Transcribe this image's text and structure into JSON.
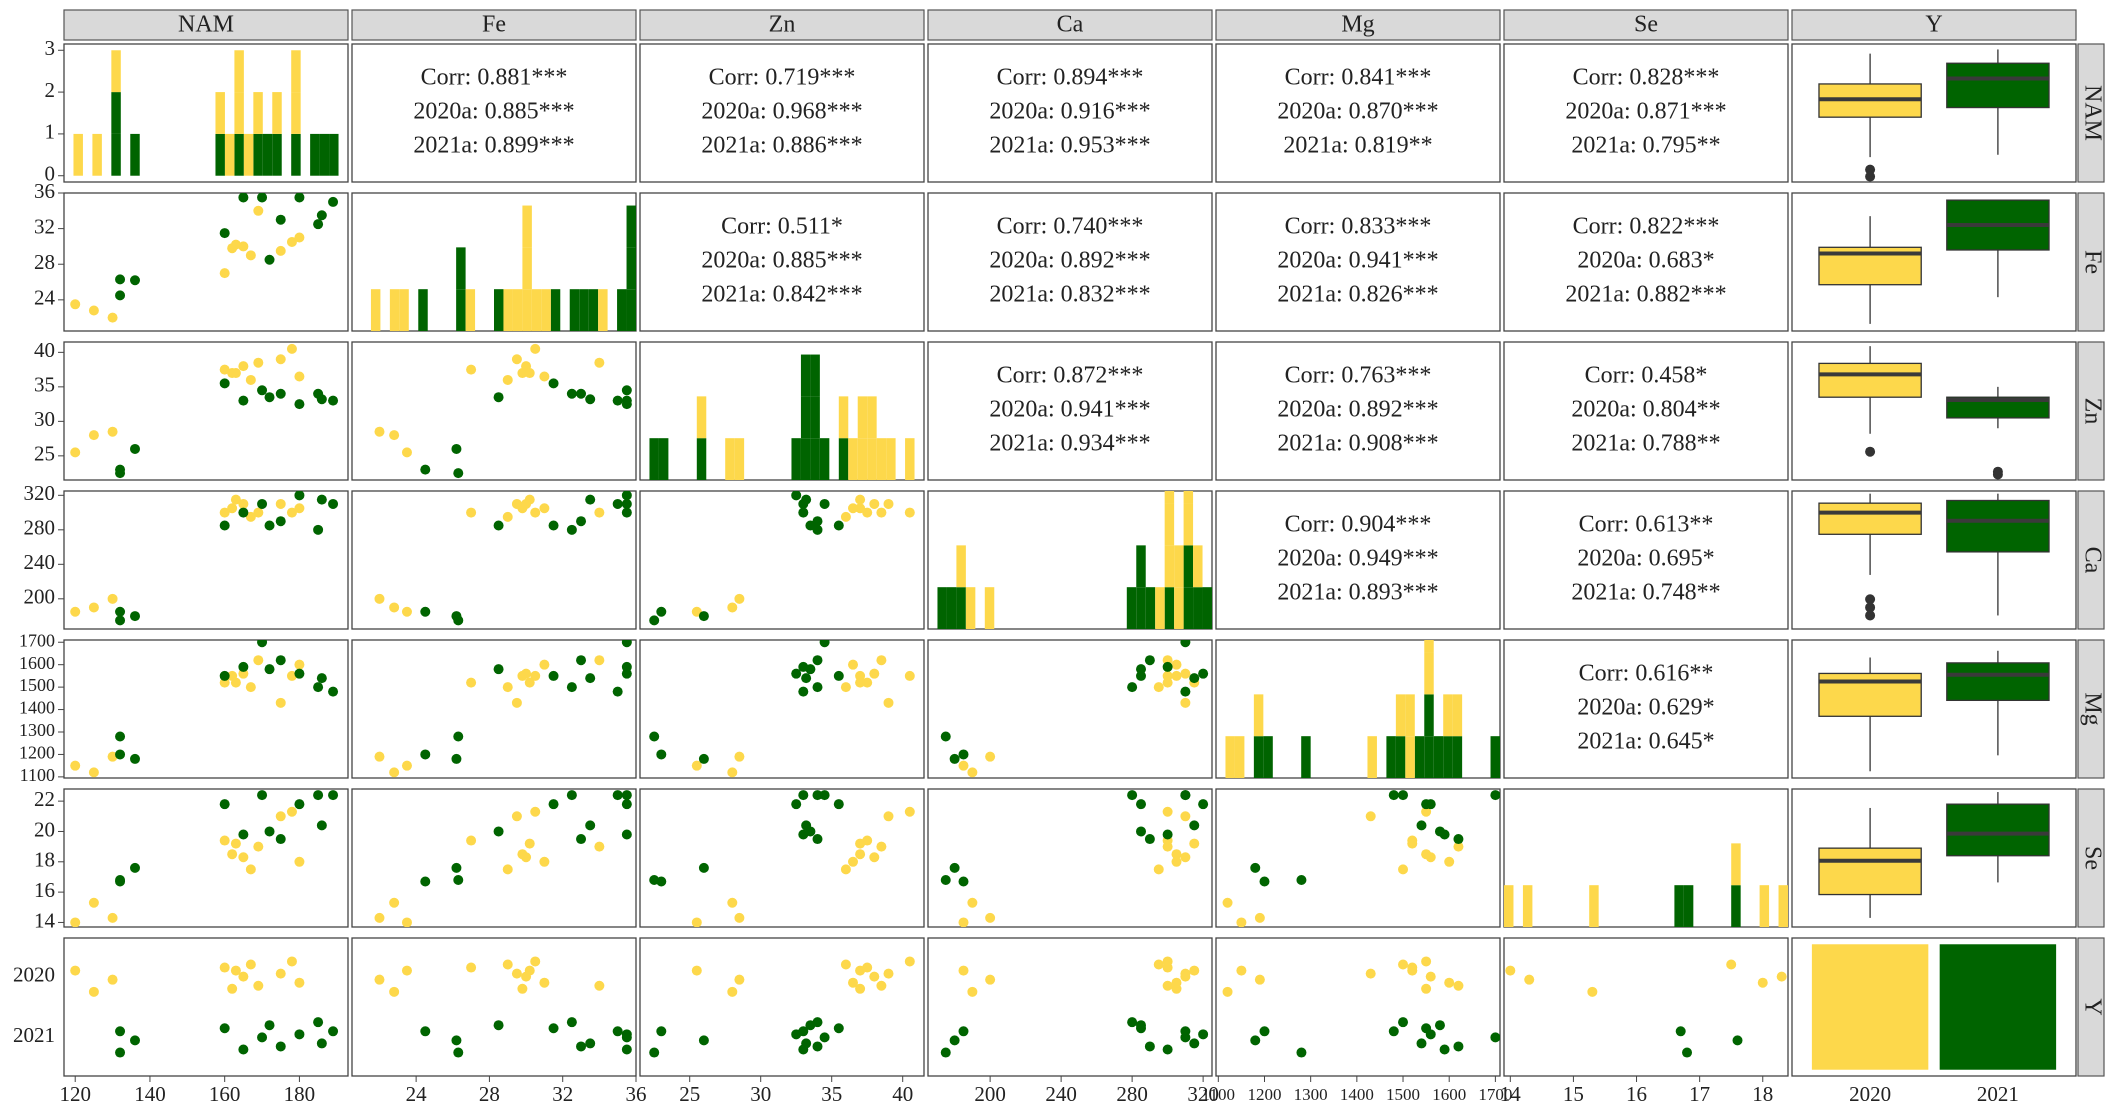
{
  "chart_data": {
    "type": "pairs",
    "variables": [
      {
        "name": "NAM",
        "xlim": [
          117,
          193
        ],
        "xticks": [
          120,
          140,
          160,
          180
        ],
        "ylim": [
          117,
          193
        ],
        "count_lim": [
          -0.15,
          3.15
        ],
        "count_ticks": [
          0,
          1,
          2,
          3
        ]
      },
      {
        "name": "Fe",
        "xlim": [
          20.5,
          36
        ],
        "xticks": [
          24,
          28,
          32,
          36
        ],
        "ylim": [
          20.5,
          36
        ],
        "yticks": [
          24,
          28,
          32,
          36
        ],
        "count_lim": [
          0,
          3.3
        ]
      },
      {
        "name": "Zn",
        "xlim": [
          21.5,
          41.5
        ],
        "xticks": [
          25,
          30,
          35,
          40
        ],
        "ylim": [
          21.5,
          41.5
        ],
        "yticks": [
          25,
          30,
          35,
          40
        ],
        "count_lim": [
          0,
          3.3
        ]
      },
      {
        "name": "Ca",
        "xlim": [
          165,
          325
        ],
        "xticks": [
          200,
          240,
          280,
          320
        ],
        "ylim": [
          165,
          325
        ],
        "yticks": [
          200,
          240,
          280,
          320
        ],
        "count_lim": [
          0,
          3.3
        ]
      },
      {
        "name": "Mg",
        "xlim": [
          1095,
          1710
        ],
        "xticks": [
          1100,
          1200,
          1300,
          1400,
          1500,
          1600,
          1700
        ],
        "ylim": [
          1095,
          1710
        ],
        "yticks": [
          1100,
          1200,
          1300,
          1400,
          1500,
          1600,
          1700
        ],
        "count_lim": [
          0,
          3.3
        ]
      },
      {
        "name": "Se",
        "xlim": [
          13.9,
          18.4
        ],
        "xticks": [
          14,
          15,
          16,
          17,
          18
        ],
        "ylim": [
          13.7,
          22.8
        ],
        "yticks": [
          14,
          16,
          18,
          20,
          22
        ],
        "count_lim": [
          0,
          3.3
        ]
      },
      {
        "name": "Y",
        "count_lim": [
          -0.6,
          12.6
        ]
      }
    ],
    "series": [
      {
        "name": "2020",
        "color": "#fdd84b",
        "count": 12,
        "values": [
          [
            120,
            125,
            130,
            160,
            162,
            165,
            167,
            169,
            175,
            178,
            180,
            163
          ],
          [
            23.5,
            22.8,
            22.0,
            27.0,
            29.8,
            30.0,
            29.0,
            34.0,
            29.5,
            30.5,
            31.0,
            30.2
          ],
          [
            25.5,
            28,
            28.5,
            37.5,
            37,
            38,
            36,
            38.5,
            39,
            40.5,
            36.5,
            37
          ],
          [
            185,
            190,
            200,
            300,
            305,
            310,
            295,
            300,
            310,
            300,
            305,
            315
          ],
          [
            1150,
            1120,
            1190,
            1520,
            1550,
            1560,
            1500,
            1620,
            1430,
            1550,
            1600,
            1520
          ],
          [
            14,
            15.3,
            14.3,
            19.4,
            18.5,
            18.3,
            17.5,
            19,
            21,
            21.3,
            18,
            19.2
          ]
        ],
        "box": [
          {
            "min": 130.7,
            "q1": 152.7,
            "median": 162.6,
            "q3": 171,
            "max": 187.7,
            "outliers": [
              123.8,
              120
            ]
          },
          {
            "min": 21.3,
            "q1": 25.7,
            "median": 29.2,
            "q3": 29.9,
            "max": 33.4,
            "outliers": []
          },
          {
            "min": 28.2,
            "q1": 33.5,
            "median": 36.8,
            "q3": 38.4,
            "max": 40.9,
            "outliers": [
              25.6
            ]
          },
          {
            "min": 227.7,
            "q1": 274.8,
            "median": 299.9,
            "q3": 310.9,
            "max": 321.9,
            "outliers": [
              199.5,
              190,
              180.7
            ]
          },
          {
            "min": 1125,
            "q1": 1370,
            "median": 1525,
            "q3": 1561,
            "max": 1632,
            "outliers": []
          },
          {
            "min": 14.3,
            "q1": 15.84,
            "median": 18.07,
            "q3": 18.9,
            "max": 21.55,
            "outliers": []
          }
        ]
      },
      {
        "name": "2021",
        "color": "#006400",
        "count": 12,
        "values": [
          [
            132,
            132,
            136,
            160,
            165,
            170,
            172,
            175,
            180,
            185,
            186,
            189
          ],
          [
            24.5,
            26.3,
            26.2,
            31.5,
            35.5,
            35.5,
            28.5,
            33,
            35.5,
            32.5,
            33.5,
            35
          ],
          [
            23,
            22.5,
            26,
            35.5,
            33,
            34.5,
            33.5,
            34,
            32.5,
            34,
            33.2,
            33
          ],
          [
            185,
            175,
            180,
            285,
            300,
            310,
            285,
            290,
            320,
            280,
            315,
            310
          ],
          [
            1200,
            1280,
            1180,
            1550,
            1590,
            1700,
            1580,
            1620,
            1560,
            1500,
            1540,
            1480
          ],
          [
            16.7,
            16.8,
            17.6,
            21.8,
            19.8,
            22.4,
            20,
            19.5,
            21.8,
            22.4,
            20.4,
            22.4
          ]
        ],
        "box": [
          {
            "min": 132,
            "q1": 158,
            "median": 174,
            "q3": 182.4,
            "max": 190,
            "outliers": []
          },
          {
            "min": 24.3,
            "q1": 29.6,
            "median": 32.4,
            "q3": 35.2,
            "max": 35.2,
            "outliers": []
          },
          {
            "min": 29,
            "q1": 30.5,
            "median": 33.1,
            "q3": 33.5,
            "max": 35,
            "outliers": [
              22.7,
              22.3
            ]
          },
          {
            "min": 180.7,
            "q1": 254.4,
            "median": 290.5,
            "q3": 314,
            "max": 321.9,
            "outliers": []
          },
          {
            "min": 1196,
            "q1": 1441,
            "median": 1555,
            "q3": 1608,
            "max": 1662,
            "outliers": []
          },
          {
            "min": 16.64,
            "q1": 18.4,
            "median": 19.86,
            "q3": 21.8,
            "max": 22.6,
            "outliers": []
          }
        ]
      }
    ],
    "correlations": [
      [
        [
          "Corr: 0.881***",
          "2020a: 0.885***",
          "2021a: 0.899***"
        ],
        [
          "Corr: 0.719***",
          "2020a: 0.968***",
          "2021a: 0.886***"
        ],
        [
          "Corr: 0.894***",
          "2020a: 0.916***",
          "2021a: 0.953***"
        ],
        [
          "Corr: 0.841***",
          "2020a: 0.870***",
          "2021a: 0.819**"
        ],
        [
          "Corr: 0.828***",
          "2020a: 0.871***",
          "2021a: 0.795**"
        ]
      ],
      [
        [
          "Corr: 0.511*",
          "2020a: 0.885***",
          "2021a: 0.842***"
        ],
        [
          "Corr: 0.740***",
          "2020a: 0.892***",
          "2021a: 0.832***"
        ],
        [
          "Corr: 0.833***",
          "2020a: 0.941***",
          "2021a: 0.826***"
        ],
        [
          "Corr: 0.822***",
          "2020a: 0.683*",
          "2021a: 0.882***"
        ]
      ],
      [
        [
          "Corr: 0.872***",
          "2020a: 0.941***",
          "2021a: 0.934***"
        ],
        [
          "Corr: 0.763***",
          "2020a: 0.892***",
          "2021a: 0.908***"
        ],
        [
          "Corr: 0.458*",
          "2020a: 0.804**",
          "2021a: 0.788**"
        ]
      ],
      [
        [
          "Corr: 0.904***",
          "2020a: 0.949***",
          "2021a: 0.893***"
        ],
        [
          "Corr: 0.613**",
          "2020a: 0.695*",
          "2021a: 0.748**"
        ]
      ],
      [
        [
          "Corr: 0.616**",
          "2020a: 0.629*",
          "2021a: 0.645*"
        ]
      ]
    ]
  }
}
